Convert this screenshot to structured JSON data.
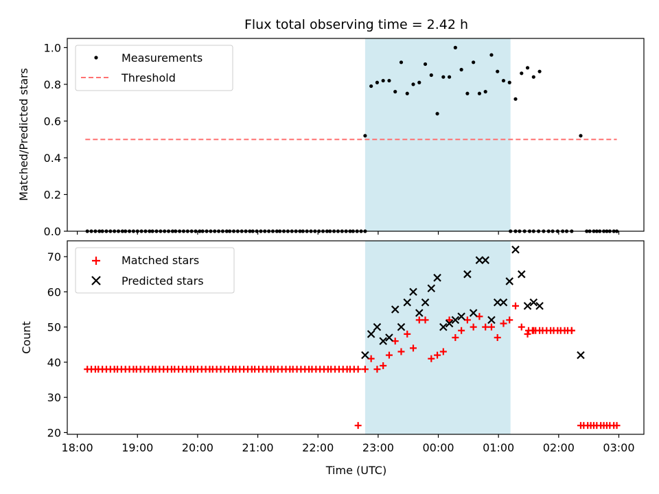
{
  "chart_data": [
    {
      "type": "scatter",
      "title": "Flux total observing time = 2.42 h",
      "ylabel": "Matched/Predicted stars",
      "ylim": [
        0,
        1.05
      ],
      "yticks": [
        "0.0",
        "0.2",
        "0.4",
        "0.6",
        "0.8",
        "1.0"
      ],
      "highlight_span": {
        "start": "22:47",
        "end": "01:12",
        "color": "#add8e6"
      },
      "legend": {
        "position": "top-left",
        "entries": [
          "Measurements",
          "Threshold"
        ]
      },
      "threshold": {
        "name": "Threshold",
        "value": 0.5,
        "start": "18:08",
        "end": "02:58",
        "color": "#ff7070"
      },
      "series": [
        {
          "name": "Measurements",
          "color": "#000000",
          "marker": "dot",
          "points": [
            [
              "22:47",
              0.52
            ],
            [
              "22:53",
              0.79
            ],
            [
              "22:59",
              0.81
            ],
            [
              "23:05",
              0.82
            ],
            [
              "23:11",
              0.82
            ],
            [
              "23:17",
              0.76
            ],
            [
              "23:23",
              0.92
            ],
            [
              "23:29",
              0.75
            ],
            [
              "23:35",
              0.8
            ],
            [
              "23:41",
              0.81
            ],
            [
              "23:47",
              0.91
            ],
            [
              "23:53",
              0.85
            ],
            [
              "23:59",
              0.64
            ],
            [
              "00:05",
              0.84
            ],
            [
              "00:11",
              0.84
            ],
            [
              "00:17",
              1.0
            ],
            [
              "00:23",
              0.88
            ],
            [
              "00:29",
              0.75
            ],
            [
              "00:35",
              0.92
            ],
            [
              "00:41",
              0.75
            ],
            [
              "00:47",
              0.76
            ],
            [
              "00:53",
              0.96
            ],
            [
              "00:59",
              0.87
            ],
            [
              "01:05",
              0.82
            ],
            [
              "01:11",
              0.81
            ],
            [
              "01:17",
              0.72
            ],
            [
              "01:23",
              0.86
            ],
            [
              "01:29",
              0.89
            ],
            [
              "01:35",
              0.84
            ],
            [
              "01:41",
              0.87
            ],
            [
              "02:22",
              0.52
            ]
          ],
          "zero_runs": [
            {
              "start": "18:10",
              "end": "22:47",
              "count": 73,
              "value": 0
            },
            {
              "start": "01:12",
              "end": "02:13",
              "count": 14,
              "value": 0
            },
            {
              "start": "02:28",
              "end": "02:58",
              "count": 10,
              "value": 0
            }
          ]
        }
      ]
    },
    {
      "type": "scatter",
      "xlabel": "Time (UTC)",
      "ylabel": "Count",
      "ylim": [
        19.5,
        74.5
      ],
      "yticks": [
        "20",
        "30",
        "40",
        "50",
        "60",
        "70"
      ],
      "xlim": [
        "17:50",
        "03:25"
      ],
      "xticks": [
        "18:00",
        "19:00",
        "20:00",
        "21:00",
        "22:00",
        "23:00",
        "00:00",
        "01:00",
        "02:00",
        "03:00"
      ],
      "highlight_span": {
        "start": "22:47",
        "end": "01:12",
        "color": "#add8e6"
      },
      "legend": {
        "position": "top-left",
        "entries": [
          "Matched stars",
          "Predicted stars"
        ]
      },
      "series": [
        {
          "name": "Matched stars",
          "color": "#ff0000",
          "marker": "plus",
          "points": [
            [
              "22:40",
              22
            ],
            [
              "22:47",
              38
            ],
            [
              "22:53",
              41
            ],
            [
              "22:59",
              38
            ],
            [
              "23:05",
              39
            ],
            [
              "23:11",
              42
            ],
            [
              "23:17",
              46
            ],
            [
              "23:23",
              43
            ],
            [
              "23:29",
              48
            ],
            [
              "23:35",
              44
            ],
            [
              "23:41",
              52
            ],
            [
              "23:47",
              52
            ],
            [
              "23:53",
              41
            ],
            [
              "23:59",
              42
            ],
            [
              "00:05",
              43
            ],
            [
              "00:11",
              52
            ],
            [
              "00:17",
              47
            ],
            [
              "00:23",
              49
            ],
            [
              "00:29",
              52
            ],
            [
              "00:35",
              50
            ],
            [
              "00:41",
              53
            ],
            [
              "00:47",
              50
            ],
            [
              "00:53",
              50
            ],
            [
              "00:59",
              47
            ],
            [
              "01:05",
              51
            ],
            [
              "01:11",
              52
            ],
            [
              "01:17",
              56
            ],
            [
              "01:23",
              50
            ],
            [
              "01:29",
              48
            ],
            [
              "01:35",
              49
            ],
            [
              "02:13",
              49
            ]
          ],
          "runs": [
            {
              "start": "18:10",
              "end": "22:40",
              "count": 72,
              "value": 38
            },
            {
              "start": "01:30",
              "end": "02:13",
              "count": 13,
              "value": 49
            },
            {
              "start": "02:22",
              "end": "02:58",
              "count": 12,
              "value": 22
            }
          ]
        },
        {
          "name": "Predicted stars",
          "color": "#000000",
          "marker": "x",
          "points": [
            [
              "22:47",
              42
            ],
            [
              "22:53",
              48
            ],
            [
              "22:59",
              50
            ],
            [
              "23:05",
              46
            ],
            [
              "23:11",
              47
            ],
            [
              "23:17",
              55
            ],
            [
              "23:23",
              50
            ],
            [
              "23:29",
              57
            ],
            [
              "23:35",
              60
            ],
            [
              "23:41",
              54
            ],
            [
              "23:47",
              57
            ],
            [
              "23:53",
              61
            ],
            [
              "23:59",
              64
            ],
            [
              "00:05",
              50
            ],
            [
              "00:11",
              51
            ],
            [
              "00:17",
              52
            ],
            [
              "00:23",
              53
            ],
            [
              "00:29",
              65
            ],
            [
              "00:35",
              54
            ],
            [
              "00:41",
              69
            ],
            [
              "00:47",
              69
            ],
            [
              "00:53",
              52
            ],
            [
              "00:59",
              57
            ],
            [
              "01:05",
              57
            ],
            [
              "01:11",
              63
            ],
            [
              "01:17",
              72
            ],
            [
              "01:23",
              65
            ],
            [
              "01:29",
              56
            ],
            [
              "01:35",
              57
            ],
            [
              "01:41",
              56
            ],
            [
              "02:22",
              42
            ]
          ]
        }
      ]
    }
  ]
}
